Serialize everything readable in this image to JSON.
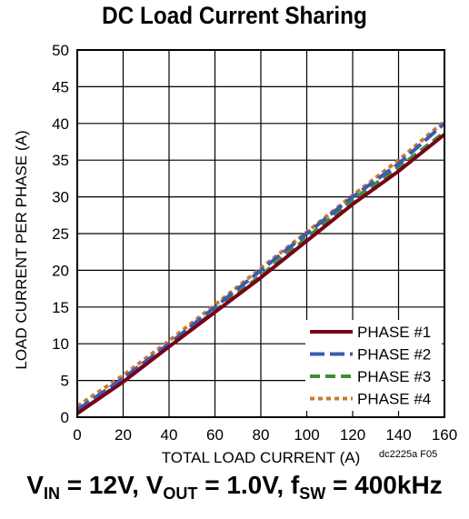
{
  "chart_data": {
    "type": "line",
    "title": "DC Load Current Sharing",
    "xlabel": "TOTAL LOAD CURRENT (A)",
    "ylabel": "LOAD CURRENT PER PHASE (A)",
    "xlim": [
      0,
      160
    ],
    "ylim": [
      0,
      50
    ],
    "x_ticks": [
      "0",
      "20",
      "40",
      "60",
      "80",
      "100",
      "120",
      "140",
      "160"
    ],
    "y_ticks": [
      "0",
      "5",
      "10",
      "15",
      "20",
      "25",
      "30",
      "35",
      "40",
      "45",
      "50"
    ],
    "grid": true,
    "legend_position": "bottom-right",
    "x": [
      0,
      20,
      40,
      60,
      80,
      100,
      120,
      140,
      160
    ],
    "series": [
      {
        "name": "PHASE #1",
        "color": "#7a0019",
        "dash": "solid",
        "values": [
          0.5,
          4.8,
          9.6,
          14.3,
          19.0,
          24.0,
          29.0,
          33.5,
          38.5
        ]
      },
      {
        "name": "PHASE #2",
        "color": "#3c5bb2",
        "dash": "long-dash",
        "values": [
          1.0,
          5.3,
          10.0,
          15.0,
          20.0,
          25.0,
          30.0,
          34.5,
          40.0
        ]
      },
      {
        "name": "PHASE #3",
        "color": "#3b8f3b",
        "dash": "dash",
        "values": [
          0.5,
          5.0,
          9.6,
          14.5,
          19.3,
          24.4,
          29.6,
          34.0,
          38.8
        ]
      },
      {
        "name": "PHASE #4",
        "color": "#c97a30",
        "dash": "dot",
        "values": [
          1.5,
          5.7,
          10.4,
          15.3,
          20.3,
          25.2,
          30.2,
          35.0,
          40.3
        ]
      }
    ]
  },
  "caption": {
    "v_in_main": "V",
    "v_in_sub": "IN",
    "v_in_value": " = 12V, ",
    "v_out_main": "V",
    "v_out_sub": "OUT",
    "v_out_value": " = 1.0V, ",
    "f_sw_main": "f",
    "f_sw_sub": "SW",
    "f_sw_value": " = 400kHz"
  },
  "figure_id": "dc2225a F05"
}
